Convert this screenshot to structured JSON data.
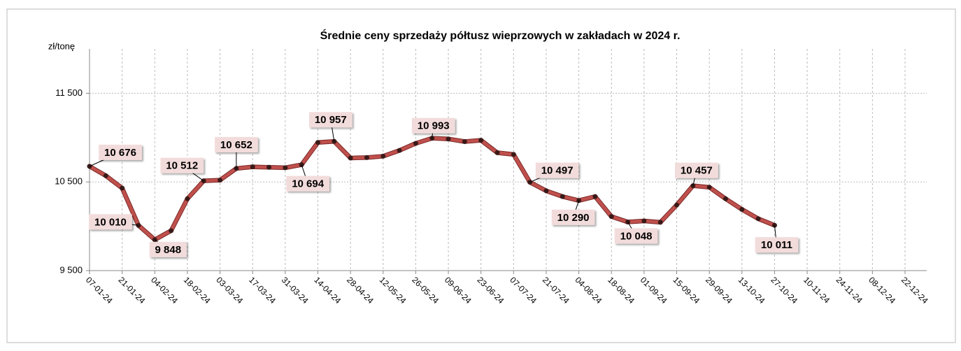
{
  "chart_data": {
    "type": "line",
    "title": "Średnie ceny sprzedaży półtusz wieprzowych w zakładach w 2024 r.",
    "y_label": "zł/tonę",
    "categories": [
      "07-01-24",
      null,
      "21-01-24",
      null,
      "04-02-24",
      null,
      "18-02-24",
      null,
      "03-03-24",
      null,
      "17-03-24",
      null,
      "31-03-24",
      null,
      "14-04-24",
      null,
      "28-04-24",
      null,
      "12-05-24",
      null,
      "26-05-24",
      null,
      "09-06-24",
      null,
      "23-06-24",
      null,
      "07-07-24",
      null,
      "21-07-24",
      null,
      "04-08-24",
      null,
      "18-08-24",
      null,
      "01-09-24",
      null,
      "15-09-24",
      null,
      "29-09-24",
      null,
      "13-10-24",
      null,
      "27-10-24",
      null,
      "10-11-24",
      null,
      "24-11-24",
      null,
      "08-12-24",
      null,
      "22-12-24",
      null
    ],
    "series": [
      {
        "name": "Średnie ceny",
        "color": "#c0504d",
        "values": [
          10676,
          10570,
          10430,
          10010,
          9848,
          9950,
          10310,
          10512,
          10520,
          10652,
          10670,
          10665,
          10660,
          10694,
          10945,
          10957,
          10770,
          10775,
          10790,
          10855,
          10935,
          10993,
          10985,
          10955,
          10970,
          10830,
          10810,
          10497,
          10400,
          10335,
          10290,
          10335,
          10110,
          10048,
          10060,
          10045,
          10240,
          10457,
          10440,
          10310,
          10190,
          10085,
          10011,
          null,
          null,
          null,
          null,
          null,
          null,
          null,
          null,
          null
        ],
        "value_labels": [
          "10 676",
          null,
          null,
          "10 010",
          "9 848",
          null,
          null,
          "10 512",
          null,
          "10 652",
          null,
          null,
          null,
          "10 694",
          null,
          "10 957",
          null,
          null,
          null,
          null,
          null,
          "10 993",
          null,
          null,
          null,
          null,
          null,
          "10 497",
          null,
          null,
          "10 290",
          null,
          null,
          "10 048",
          null,
          null,
          null,
          "10 457",
          null,
          null,
          null,
          null,
          "10 011",
          null,
          null,
          null,
          null,
          null,
          null,
          null,
          null,
          null
        ]
      }
    ],
    "ylim": [
      9500,
      12000
    ],
    "yticks": [
      {
        "value": 9500,
        "label": "9 500"
      },
      {
        "value": 10500,
        "label": "10 500"
      },
      {
        "value": 11500,
        "label": "11 500"
      }
    ],
    "grid": true
  }
}
